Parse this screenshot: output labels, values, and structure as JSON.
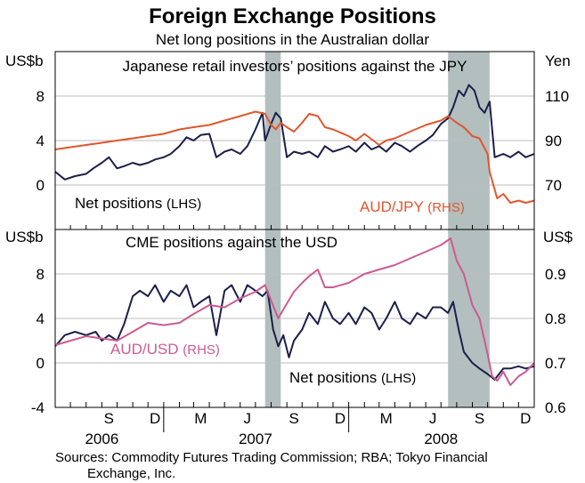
{
  "chart_data": {
    "type": "line",
    "title": "Foreign Exchange Positions",
    "subtitle": "Net long positions in the Australian dollar",
    "x_month_labels": [
      "S",
      "D",
      "M",
      "J",
      "S",
      "D",
      "M",
      "J",
      "S",
      "D"
    ],
    "x_year_labels": [
      "2006",
      "2007",
      "2008"
    ],
    "shaded_periods": [
      [
        "2007-07-20",
        "2007-08-20"
      ],
      [
        "2008-07-15",
        "2008-10-05"
      ]
    ],
    "panels": [
      {
        "title": "Japanese retail investors’ positions against the JPY",
        "left_unit": "US$b",
        "right_unit": "Yen",
        "left_ylim": [
          -4,
          12
        ],
        "right_ylim": [
          50,
          130
        ],
        "left_ticks": [
          "8",
          "4",
          "0"
        ],
        "right_ticks": [
          "110",
          "90",
          "70"
        ],
        "series": [
          {
            "name": "Net positions",
            "axis_label": "(LHS)",
            "color": "#1c1f4a",
            "x": [
              "2006-06-01",
              "2006-06-20",
              "2006-07-10",
              "2006-08-01",
              "2006-08-15",
              "2006-09-01",
              "2006-09-15",
              "2006-10-01",
              "2006-10-15",
              "2006-11-01",
              "2006-11-15",
              "2006-12-01",
              "2006-12-15",
              "2007-01-01",
              "2007-01-15",
              "2007-02-01",
              "2007-02-15",
              "2007-03-01",
              "2007-03-15",
              "2007-04-01",
              "2007-04-15",
              "2007-05-01",
              "2007-05-15",
              "2007-06-01",
              "2007-06-15",
              "2007-07-01",
              "2007-07-15",
              "2007-07-20",
              "2007-08-01",
              "2007-08-10",
              "2007-08-20",
              "2007-09-01",
              "2007-09-15",
              "2007-10-01",
              "2007-10-15",
              "2007-11-01",
              "2007-11-15",
              "2007-12-01",
              "2007-12-15",
              "2008-01-01",
              "2008-01-15",
              "2008-02-01",
              "2008-02-15",
              "2008-03-01",
              "2008-03-15",
              "2008-04-01",
              "2008-04-15",
              "2008-05-01",
              "2008-05-15",
              "2008-06-01",
              "2008-06-15",
              "2008-07-01",
              "2008-07-15",
              "2008-07-25",
              "2008-08-05",
              "2008-08-15",
              "2008-08-25",
              "2008-09-05",
              "2008-09-15",
              "2008-09-25",
              "2008-10-05",
              "2008-10-15",
              "2008-11-01",
              "2008-11-15",
              "2008-12-01",
              "2008-12-15",
              "2009-01-01"
            ],
            "values": [
              1.2,
              0.5,
              0.8,
              1.0,
              1.5,
              2.0,
              2.5,
              1.5,
              1.7,
              2.0,
              1.8,
              2.0,
              2.3,
              2.5,
              2.8,
              3.5,
              4.3,
              4.0,
              4.5,
              4.6,
              2.5,
              3.0,
              3.2,
              2.8,
              3.5,
              5.0,
              6.5,
              4.0,
              5.5,
              6.5,
              6.0,
              2.5,
              3.0,
              2.8,
              3.0,
              2.5,
              3.5,
              3.0,
              3.2,
              3.5,
              3.0,
              3.8,
              3.2,
              3.5,
              3.0,
              3.8,
              3.5,
              3.0,
              3.5,
              4.0,
              4.5,
              5.5,
              6.0,
              7.0,
              8.5,
              8.0,
              9.0,
              8.5,
              7.0,
              6.5,
              7.5,
              2.5,
              2.8,
              2.5,
              3.0,
              2.5,
              2.8
            ]
          },
          {
            "name": "AUD/JPY",
            "axis_label": "(RHS)",
            "color": "#e0562f",
            "axis": "right",
            "x": [
              "2006-06-01",
              "2006-07-01",
              "2006-08-01",
              "2006-09-01",
              "2006-10-01",
              "2006-11-01",
              "2006-12-01",
              "2007-01-01",
              "2007-02-01",
              "2007-03-01",
              "2007-04-01",
              "2007-05-01",
              "2007-06-01",
              "2007-07-01",
              "2007-07-20",
              "2007-08-01",
              "2007-08-10",
              "2007-08-20",
              "2007-09-01",
              "2007-09-15",
              "2007-10-01",
              "2007-10-15",
              "2007-11-01",
              "2007-11-15",
              "2007-12-01",
              "2008-01-01",
              "2008-01-15",
              "2008-02-01",
              "2008-03-01",
              "2008-03-15",
              "2008-04-01",
              "2008-05-01",
              "2008-06-01",
              "2008-07-01",
              "2008-07-15",
              "2008-08-01",
              "2008-08-15",
              "2008-09-01",
              "2008-09-15",
              "2008-10-01",
              "2008-10-05",
              "2008-10-10",
              "2008-10-20",
              "2008-11-01",
              "2008-11-15",
              "2008-12-01",
              "2008-12-15",
              "2009-01-01"
            ],
            "values": [
              86,
              87,
              88,
              89,
              90,
              91,
              92,
              93,
              95,
              96,
              97,
              99,
              101,
              103,
              102,
              97,
              95,
              98,
              96,
              94,
              98,
              102,
              101,
              96,
              95,
              92,
              90,
              93,
              88,
              90,
              91,
              94,
              97,
              99,
              101,
              98,
              96,
              92,
              91,
              84,
              76,
              72,
              64,
              66,
              62,
              63,
              62,
              63
            ]
          }
        ]
      },
      {
        "title": "CME positions against the USD",
        "left_unit": "US$b",
        "right_unit": "US$",
        "left_ylim": [
          -4,
          12
        ],
        "right_ylim": [
          0.6,
          1.0
        ],
        "left_ticks": [
          "8",
          "4",
          "0",
          "-4"
        ],
        "right_ticks": [
          "0.9",
          "0.8",
          "0.7",
          "0.6"
        ],
        "series": [
          {
            "name": "Net positions",
            "axis_label": "(LHS)",
            "color": "#1c1f4a",
            "x": [
              "2006-06-01",
              "2006-06-20",
              "2006-07-10",
              "2006-08-01",
              "2006-08-20",
              "2006-09-01",
              "2006-09-15",
              "2006-10-01",
              "2006-10-15",
              "2006-11-01",
              "2006-11-15",
              "2006-12-01",
              "2006-12-15",
              "2007-01-01",
              "2007-01-15",
              "2007-02-01",
              "2007-02-15",
              "2007-03-01",
              "2007-03-15",
              "2007-04-01",
              "2007-04-15",
              "2007-05-01",
              "2007-05-15",
              "2007-06-01",
              "2007-06-15",
              "2007-07-01",
              "2007-07-15",
              "2007-07-25",
              "2007-08-05",
              "2007-08-15",
              "2007-08-25",
              "2007-09-05",
              "2007-09-15",
              "2007-10-01",
              "2007-10-15",
              "2007-11-01",
              "2007-11-15",
              "2007-12-01",
              "2007-12-15",
              "2008-01-01",
              "2008-01-15",
              "2008-02-01",
              "2008-02-15",
              "2008-03-01",
              "2008-03-15",
              "2008-04-01",
              "2008-04-15",
              "2008-05-01",
              "2008-05-15",
              "2008-06-01",
              "2008-06-15",
              "2008-07-01",
              "2008-07-15",
              "2008-07-25",
              "2008-08-05",
              "2008-08-15",
              "2008-09-01",
              "2008-09-15",
              "2008-10-01",
              "2008-10-15",
              "2008-11-01",
              "2008-11-15",
              "2008-12-01",
              "2008-12-15",
              "2009-01-01"
            ],
            "values": [
              1.5,
              2.5,
              2.8,
              2.5,
              2.8,
              2.0,
              2.5,
              2.0,
              3.5,
              6.0,
              6.5,
              6.0,
              7.0,
              5.5,
              6.5,
              6.0,
              7.0,
              5.0,
              5.5,
              6.0,
              2.5,
              6.5,
              7.0,
              5.5,
              7.0,
              6.5,
              6.0,
              6.5,
              3.0,
              1.5,
              2.5,
              0.5,
              2.0,
              3.0,
              4.5,
              3.5,
              5.5,
              4.0,
              3.5,
              4.5,
              3.5,
              5.0,
              4.5,
              3.0,
              4.0,
              5.5,
              4.0,
              3.5,
              4.5,
              4.0,
              5.0,
              5.0,
              4.5,
              5.5,
              3.0,
              1.0,
              0.0,
              -0.5,
              -1.0,
              -1.5,
              -0.5,
              -0.5,
              -0.3,
              -0.5,
              -0.3
            ]
          },
          {
            "name": "AUD/USD",
            "axis_label": "(RHS)",
            "color": "#cc5a94",
            "axis": "right",
            "x": [
              "2006-06-01",
              "2006-07-01",
              "2006-08-01",
              "2006-09-01",
              "2006-10-01",
              "2006-11-01",
              "2006-12-01",
              "2007-01-01",
              "2007-02-01",
              "2007-03-01",
              "2007-04-01",
              "2007-05-01",
              "2007-06-01",
              "2007-07-01",
              "2007-07-20",
              "2007-08-01",
              "2007-08-15",
              "2007-08-25",
              "2007-09-15",
              "2007-10-01",
              "2007-10-15",
              "2007-11-01",
              "2007-11-15",
              "2007-12-01",
              "2008-01-01",
              "2008-02-01",
              "2008-03-01",
              "2008-04-01",
              "2008-05-01",
              "2008-06-01",
              "2008-07-01",
              "2008-07-20",
              "2008-08-01",
              "2008-08-15",
              "2008-09-01",
              "2008-09-15",
              "2008-10-01",
              "2008-10-10",
              "2008-10-20",
              "2008-11-01",
              "2008-11-15",
              "2008-12-01",
              "2008-12-15",
              "2009-01-01"
            ],
            "values": [
              0.74,
              0.75,
              0.76,
              0.755,
              0.75,
              0.77,
              0.79,
              0.785,
              0.79,
              0.81,
              0.83,
              0.825,
              0.845,
              0.86,
              0.875,
              0.84,
              0.8,
              0.82,
              0.86,
              0.88,
              0.895,
              0.91,
              0.87,
              0.87,
              0.88,
              0.9,
              0.91,
              0.92,
              0.935,
              0.95,
              0.965,
              0.98,
              0.93,
              0.9,
              0.83,
              0.8,
              0.72,
              0.67,
              0.66,
              0.68,
              0.65,
              0.67,
              0.68,
              0.7
            ]
          }
        ]
      }
    ],
    "series_labels": [
      {
        "name": "Net positions",
        "axis_label": "(LHS)",
        "panel": 0
      },
      {
        "name": "AUD/JPY",
        "axis_label": "(RHS)",
        "panel": 0
      },
      {
        "name": "AUD/USD",
        "axis_label": "(RHS)",
        "panel": 1
      },
      {
        "name": "Net positions",
        "axis_label": "(LHS)",
        "panel": 1
      }
    ],
    "source": "Sources: Commodity Futures Trading Commission; RBA; Tokyo Financial Exchange, Inc.",
    "source_lines": [
      "Sources: Commodity Futures Trading Commission; RBA; Tokyo Financial",
      "Exchange, Inc."
    ]
  }
}
